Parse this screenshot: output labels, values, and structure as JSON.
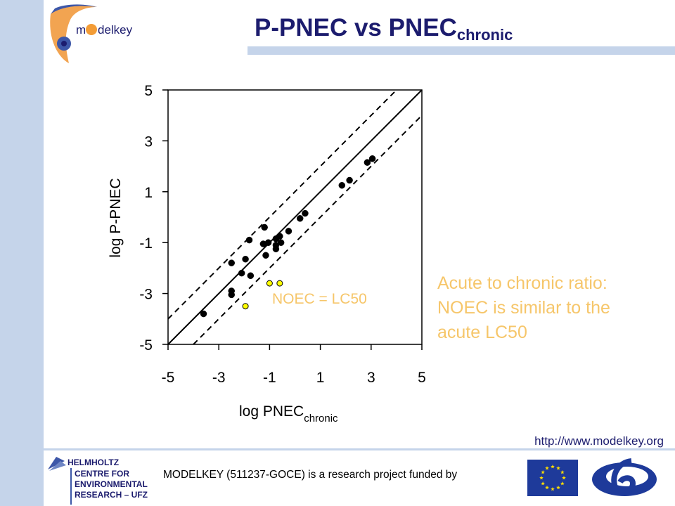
{
  "slide": {
    "title_main": "P-PNEC vs PNEC",
    "title_sub": "chronic",
    "logo_text_m": "m",
    "logo_text_rest": "delkey",
    "annotation_lines": [
      "Acute to chronic ratio:",
      "NOEC is similar to the",
      "acute LC50"
    ],
    "url": "http://www.modelkey.org",
    "footer_text": "MODELKEY (511237-GOCE) is a research project funded by",
    "helmholtz_lines": [
      "HELMHOLTZ",
      "CENTRE FOR",
      "ENVIRONMENTAL",
      "RESEARCH – UFZ"
    ]
  },
  "colors": {
    "accent_bar": "#c5d4ea",
    "title": "#1c1c6e",
    "annotation": "#f6c66a",
    "point_black": "#000000",
    "point_yellow": "#ffff00"
  },
  "chart_data": {
    "type": "scatter",
    "xlabel_main": "log PNEC",
    "xlabel_sub": "chronic",
    "ylabel": "log P-PNEC",
    "xlim": [
      -5,
      5
    ],
    "ylim": [
      -5,
      5
    ],
    "xticks": [
      "-5",
      "-3",
      "-1",
      "1",
      "3",
      "5"
    ],
    "yticks": [
      "5",
      "3",
      "1",
      "-1",
      "-3",
      "-5"
    ],
    "grid": false,
    "reference_lines": [
      {
        "style": "solid",
        "slope": 1,
        "intercept": 0
      },
      {
        "style": "dashed",
        "slope": 1,
        "intercept": 1
      },
      {
        "style": "dashed",
        "slope": 1,
        "intercept": -1
      }
    ],
    "series": [
      {
        "color": "black",
        "points": [
          [
            -3.6,
            -3.8
          ],
          [
            -2.5,
            -2.9
          ],
          [
            -2.5,
            -3.05
          ],
          [
            -2.5,
            -1.8
          ],
          [
            -2.1,
            -2.2
          ],
          [
            -1.95,
            -1.65
          ],
          [
            -1.8,
            -0.9
          ],
          [
            -1.75,
            -2.3
          ],
          [
            -1.2,
            -0.4
          ],
          [
            -1.25,
            -1.05
          ],
          [
            -1.15,
            -1.5
          ],
          [
            -1.05,
            -1.0
          ],
          [
            -0.75,
            -0.85
          ],
          [
            -0.75,
            -1.1
          ],
          [
            -0.75,
            -1.25
          ],
          [
            -0.6,
            -0.75
          ],
          [
            -0.55,
            -1.0
          ],
          [
            -0.25,
            -0.55
          ],
          [
            0.2,
            -0.05
          ],
          [
            0.4,
            0.15
          ],
          [
            1.85,
            1.25
          ],
          [
            2.15,
            1.45
          ],
          [
            2.85,
            2.15
          ],
          [
            3.05,
            2.3
          ]
        ]
      },
      {
        "color": "yellow",
        "points": [
          [
            -1.0,
            -2.6
          ],
          [
            -0.6,
            -2.6
          ],
          [
            -1.95,
            -3.5
          ]
        ]
      }
    ],
    "annotations": [
      {
        "text": "NOEC = LC50",
        "x": -0.9,
        "y": -3.4
      }
    ]
  }
}
